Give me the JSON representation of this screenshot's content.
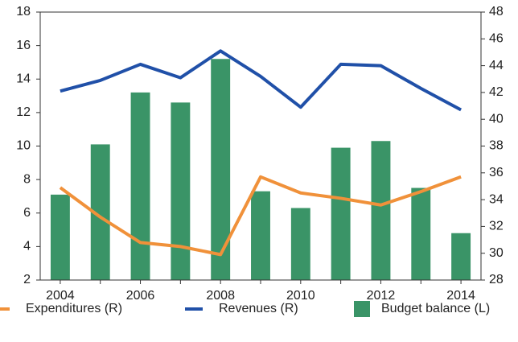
{
  "chart_data": {
    "type": "bar_line",
    "categories": [
      "2004",
      null,
      "2006",
      null,
      "2008",
      null,
      "2010",
      null,
      "2012",
      null,
      "2014"
    ],
    "series": [
      {
        "name": "Expenditures (R)",
        "type": "line",
        "axis": "y2",
        "color": "#f0913a",
        "values": [
          34.9,
          32.7,
          30.8,
          30.5,
          29.9,
          35.7,
          34.5,
          34.1,
          33.6,
          34.6,
          35.7
        ]
      },
      {
        "name": "Revenues (R)",
        "type": "line",
        "axis": "y2",
        "color": "#2050a8",
        "values": [
          42.1,
          42.9,
          44.1,
          43.1,
          45.1,
          43.2,
          40.9,
          44.1,
          44.0,
          42.3,
          40.7
        ]
      },
      {
        "name": "Budget balance (L)",
        "type": "bar",
        "axis": "y",
        "color": "#3a9467",
        "values": [
          7.1,
          10.1,
          13.2,
          12.6,
          15.2,
          7.3,
          6.3,
          9.9,
          10.3,
          7.5,
          4.8
        ]
      }
    ],
    "ylim": [
      2,
      18
    ],
    "yticks": [
      2,
      4,
      6,
      8,
      10,
      12,
      14,
      16,
      18
    ],
    "y2lim": [
      28,
      48
    ],
    "y2ticks": [
      28,
      30,
      32,
      34,
      36,
      38,
      40,
      42,
      44,
      46,
      48
    ],
    "grid": false,
    "legend": "bottom"
  }
}
